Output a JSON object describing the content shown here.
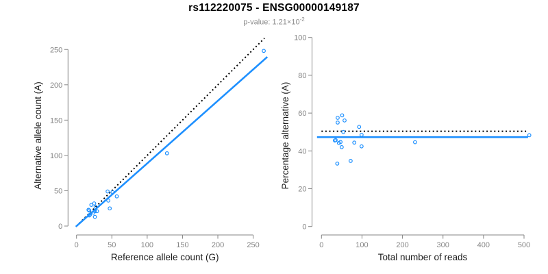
{
  "header": {
    "title": "rs112220075 - ENSG00000149187",
    "pvalue_text": "p-value: 1.21×10",
    "pvalue_exponent": "-2"
  },
  "colors": {
    "accent_blue": "#1E90FF",
    "reference_black": "#000000",
    "axis_gray": "#858585",
    "label_dark": "#1a1a1a",
    "subtitle_gray": "#8a8a8a"
  },
  "chart_data": [
    {
      "type": "scatter",
      "panel": "left",
      "title": "",
      "xlabel": "Reference allele count (G)",
      "ylabel": "Alternative allele count (A)",
      "xticks": [
        0,
        50,
        100,
        150,
        200,
        250
      ],
      "yticks": [
        0,
        50,
        100,
        150,
        200,
        250
      ],
      "xlim": [
        0,
        274
      ],
      "ylim": [
        0,
        278
      ],
      "grid": false,
      "legend": "none",
      "points": [
        [
          265,
          248
        ],
        [
          128,
          103
        ],
        [
          44,
          49
        ],
        [
          51,
          48
        ],
        [
          57,
          42
        ],
        [
          45,
          36
        ],
        [
          47,
          25
        ],
        [
          21,
          30
        ],
        [
          25,
          32
        ],
        [
          18,
          22
        ],
        [
          17,
          23
        ],
        [
          27,
          27
        ],
        [
          26,
          21
        ],
        [
          24,
          19
        ],
        [
          29,
          21
        ],
        [
          19,
          16
        ],
        [
          18,
          15
        ],
        [
          26,
          13
        ]
      ],
      "lines": [
        {
          "name": "identity-line",
          "style": "dotted",
          "color": "#000000",
          "slope": 1,
          "intercept": 0,
          "x_range": [
            4,
            266
          ]
        },
        {
          "name": "fit-line",
          "style": "solid",
          "color": "#1E90FF",
          "slope": 0.887,
          "intercept": 0,
          "x_range": [
            -1,
            270
          ]
        }
      ]
    },
    {
      "type": "scatter",
      "panel": "right",
      "title": "",
      "xlabel": "Total number of reads",
      "ylabel": "Percentage alternative (A)",
      "xticks": [
        0,
        100,
        200,
        300,
        400,
        500
      ],
      "yticks": [
        0,
        20,
        40,
        60,
        80,
        100
      ],
      "xlim": [
        0,
        520
      ],
      "ylim": [
        0,
        100
      ],
      "grid": false,
      "legend": "none",
      "points": [
        [
          513,
          48.3
        ],
        [
          231,
          44.6
        ],
        [
          93,
          52.7
        ],
        [
          99,
          48.5
        ],
        [
          99,
          42.4
        ],
        [
          81,
          44.4
        ],
        [
          72,
          34.7
        ],
        [
          51,
          58.8
        ],
        [
          57,
          56.1
        ],
        [
          40,
          55.0
        ],
        [
          40,
          57.5
        ],
        [
          54,
          50.0
        ],
        [
          47,
          44.7
        ],
        [
          43,
          44.2
        ],
        [
          50,
          42.0
        ],
        [
          35,
          45.7
        ],
        [
          33,
          45.5
        ],
        [
          39,
          33.3
        ]
      ],
      "lines": [
        {
          "name": "expected-50pct-line",
          "style": "dotted",
          "color": "#000000",
          "slope": 0,
          "intercept": 50.4,
          "x_range": [
            0,
            508
          ]
        },
        {
          "name": "fit-line",
          "style": "solid",
          "color": "#1E90FF",
          "slope": 0,
          "intercept": 47.3,
          "x_range": [
            -11,
            510
          ]
        }
      ]
    }
  ]
}
